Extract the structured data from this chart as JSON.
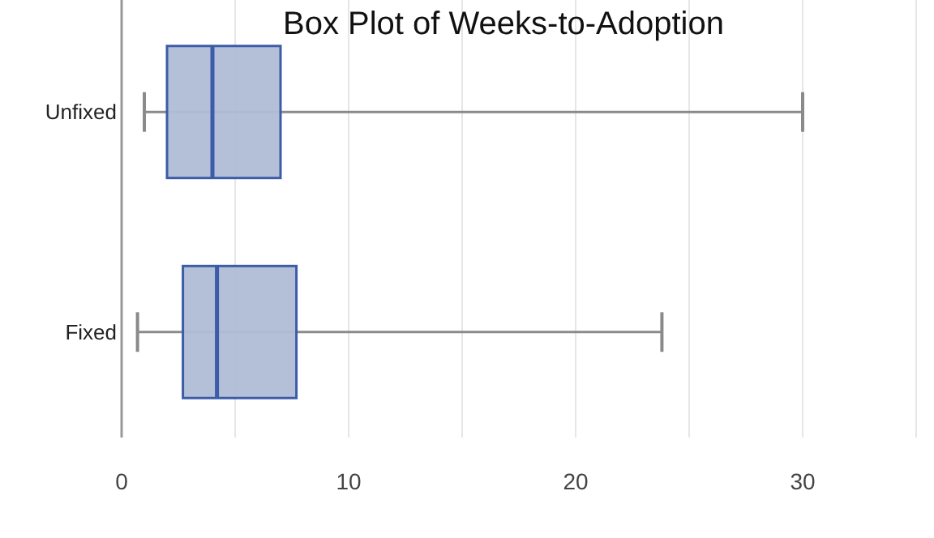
{
  "chart_data": {
    "type": "box",
    "orientation": "horizontal",
    "title": "Box Plot of Weeks-to-Adoption",
    "categories": [
      "Unfixed",
      "Fixed"
    ],
    "color": "#b0bdd6",
    "boxes": [
      {
        "low": 1,
        "q1": 2,
        "median": 4,
        "q3": 7,
        "high": 30
      },
      {
        "low": 0.7,
        "q1": 2.7,
        "median": 4.2,
        "q3": 7.7,
        "high": 23.8
      }
    ],
    "xlim": [
      0,
      35
    ],
    "xticks": [
      0,
      {
        "value": 5,
        "label": null
      },
      10,
      {
        "value": 15,
        "label": null
      },
      20,
      {
        "value": 25,
        "label": null
      },
      30,
      {
        "value": 35,
        "label": null
      }
    ],
    "grid": "x"
  }
}
